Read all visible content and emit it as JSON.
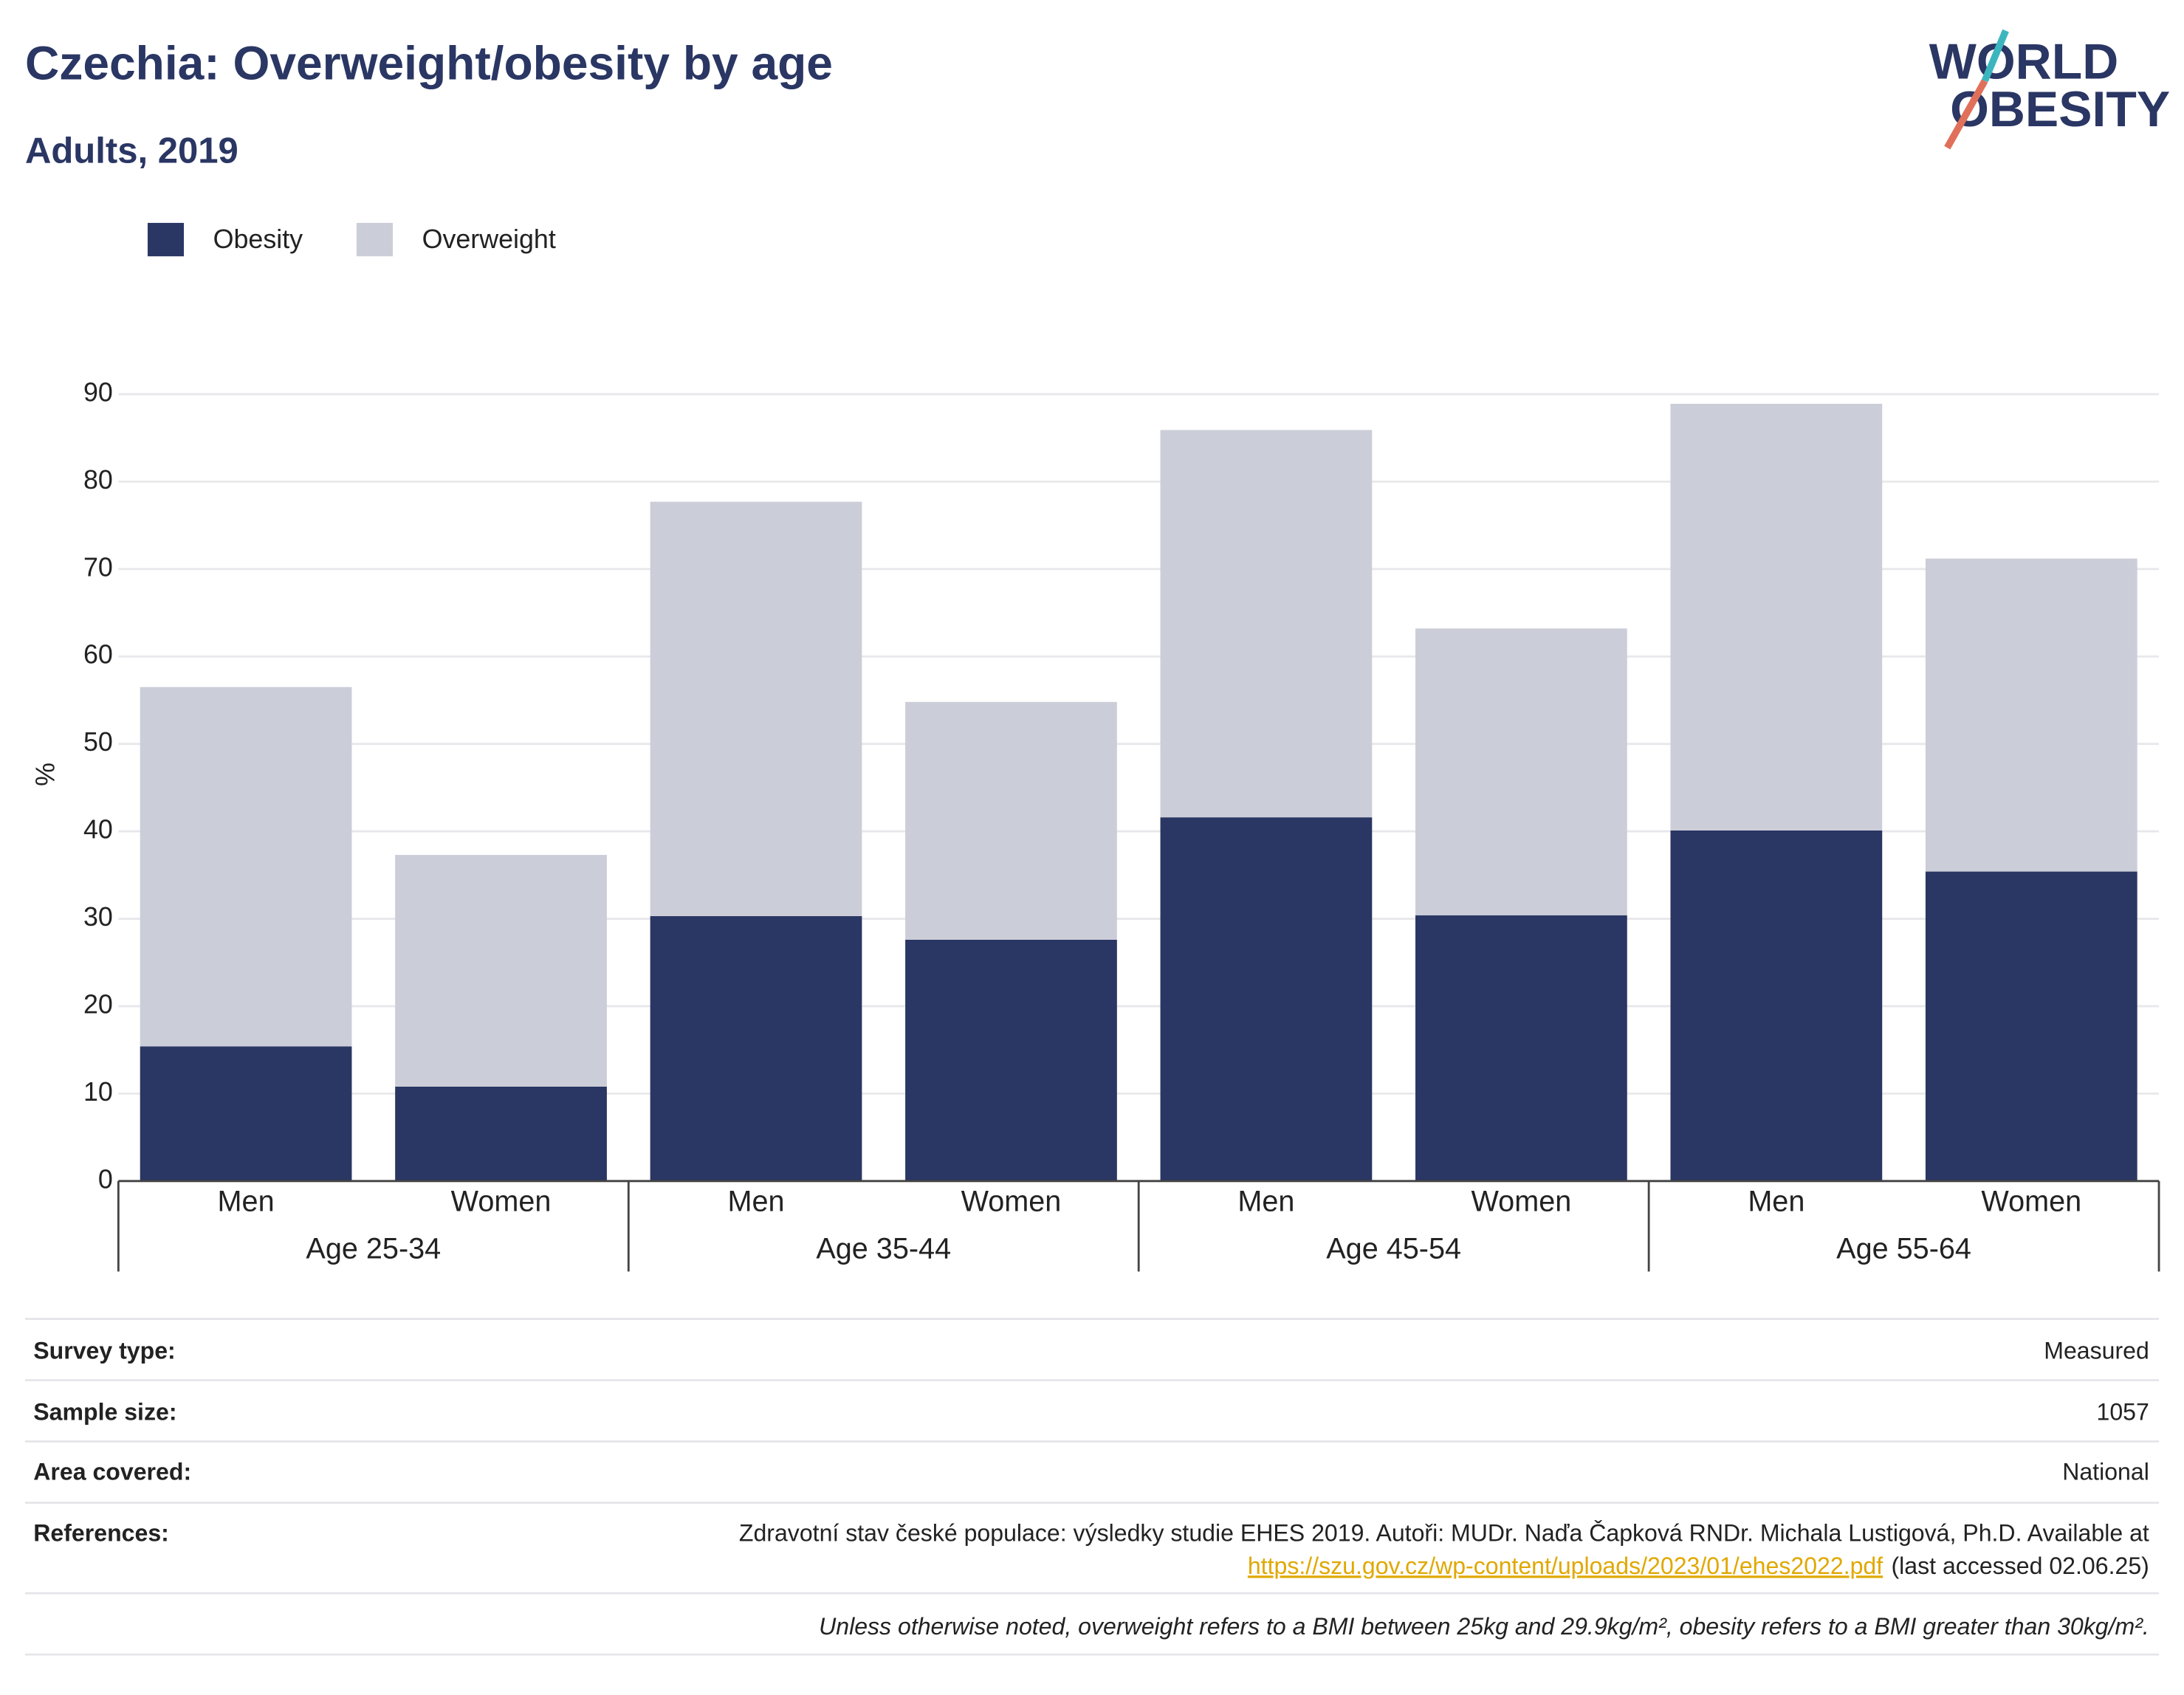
{
  "chart_data": {
    "type": "stacked_bar",
    "title": "Czechia: Overweight/obesity by age",
    "subtitle": "Adults, 2019",
    "y_label": "%",
    "categories": [
      "Men",
      "Women",
      "Men",
      "Women",
      "Men",
      "Women",
      "Men",
      "Women"
    ],
    "groups": [
      "Age 25-34",
      "Age 35-44",
      "Age 45-54",
      "Age 55-64"
    ],
    "series": [
      {
        "name": "Obesity",
        "color": "#2a3663",
        "values": [
          15.4,
          10.8,
          30.3,
          27.6,
          41.6,
          30.4,
          40.1,
          35.4
        ]
      },
      {
        "name": "Overweight",
        "color": "#cbcdd8",
        "values": [
          41.1,
          26.5,
          47.4,
          27.2,
          44.3,
          32.8,
          48.8,
          35.8
        ]
      }
    ],
    "ylim": [
      0,
      90
    ],
    "yticks": [
      0,
      10,
      20,
      30,
      40,
      50,
      60,
      70,
      80,
      90
    ],
    "grid": true,
    "legend": "top-left"
  },
  "logo": {
    "line1": "WORLD",
    "line2": "OBESITY"
  },
  "info": {
    "rows": [
      {
        "key": "Survey type:",
        "value": "Measured"
      },
      {
        "key": "Sample size:",
        "value": "1057"
      },
      {
        "key": "Area covered:",
        "value": "National"
      }
    ],
    "references": {
      "key": "References:",
      "text": "Zdravotní stav české populace: výsledky studie EHES 2019. Autoři: MUDr. Naďa Čapková RNDr. Michala Lustigová, Ph.D. Available at",
      "url": "https://szu.gov.cz/wp-content/uploads/2023/01/ehes2022.pdf",
      "suffix": "(last accessed 02.06.25)"
    },
    "note": "Unless otherwise noted, overweight refers to a BMI between 25kg and 29.9kg/m², obesity refers to a BMI greater than 30kg/m²."
  }
}
